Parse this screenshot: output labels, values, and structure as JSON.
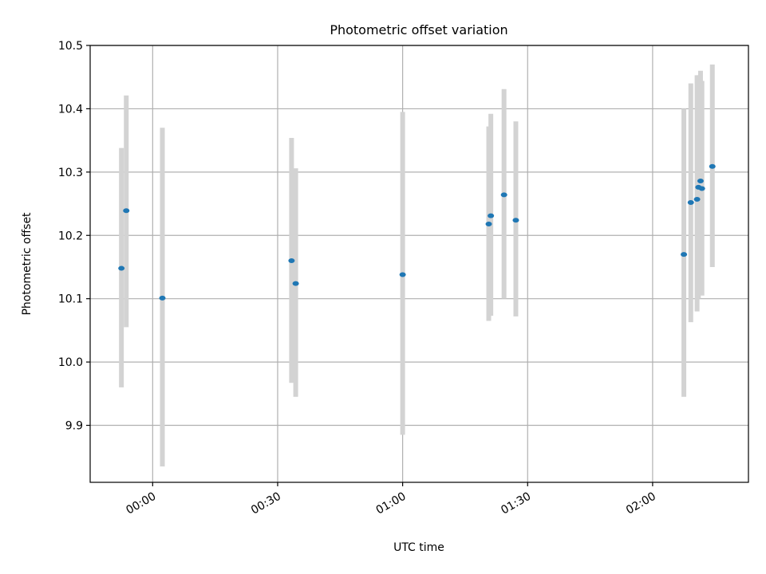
{
  "chart_data": {
    "type": "scatter",
    "title": "Photometric offset variation",
    "xlabel": "UTC time",
    "ylabel": "Photometric offset",
    "xlim": [
      "23:45",
      "02:23"
    ],
    "ylim": [
      9.81,
      10.5
    ],
    "grid": true,
    "x_ticks": [
      "00:00",
      "00:30",
      "01:00",
      "01:30",
      "02:00"
    ],
    "y_ticks": [
      "9.9",
      "10.0",
      "10.1",
      "10.2",
      "10.3",
      "10.4",
      "10.5"
    ],
    "colors": {
      "points": "#1f77b4",
      "errorbars": "#d3d3d3",
      "grid": "#b0b0b0"
    },
    "series": [
      {
        "x": [
          "23:52:30",
          "23:53:40",
          "00:02:20",
          "00:33:20",
          "00:34:20",
          "01:00:00",
          "01:20:40",
          "01:21:10",
          "01:24:20",
          "01:27:10",
          "02:07:30",
          "02:09:10",
          "02:10:40",
          "02:11:00",
          "02:11:30",
          "02:11:50",
          "02:14:20"
        ],
        "y": [
          10.148,
          10.239,
          10.101,
          10.16,
          10.124,
          10.138,
          10.218,
          10.231,
          10.264,
          10.224,
          10.17,
          10.252,
          10.257,
          10.276,
          10.286,
          10.274,
          10.309
        ],
        "yerr_low": [
          9.96,
          10.055,
          9.835,
          9.967,
          9.945,
          9.885,
          10.065,
          10.073,
          10.1,
          10.072,
          9.945,
          10.063,
          10.08,
          10.1,
          10.115,
          10.105,
          10.15
        ],
        "yerr_high": [
          10.338,
          10.421,
          10.37,
          10.354,
          10.306,
          10.395,
          10.372,
          10.392,
          10.431,
          10.38,
          10.4,
          10.44,
          10.453,
          10.453,
          10.46,
          10.444,
          10.47
        ]
      }
    ]
  }
}
